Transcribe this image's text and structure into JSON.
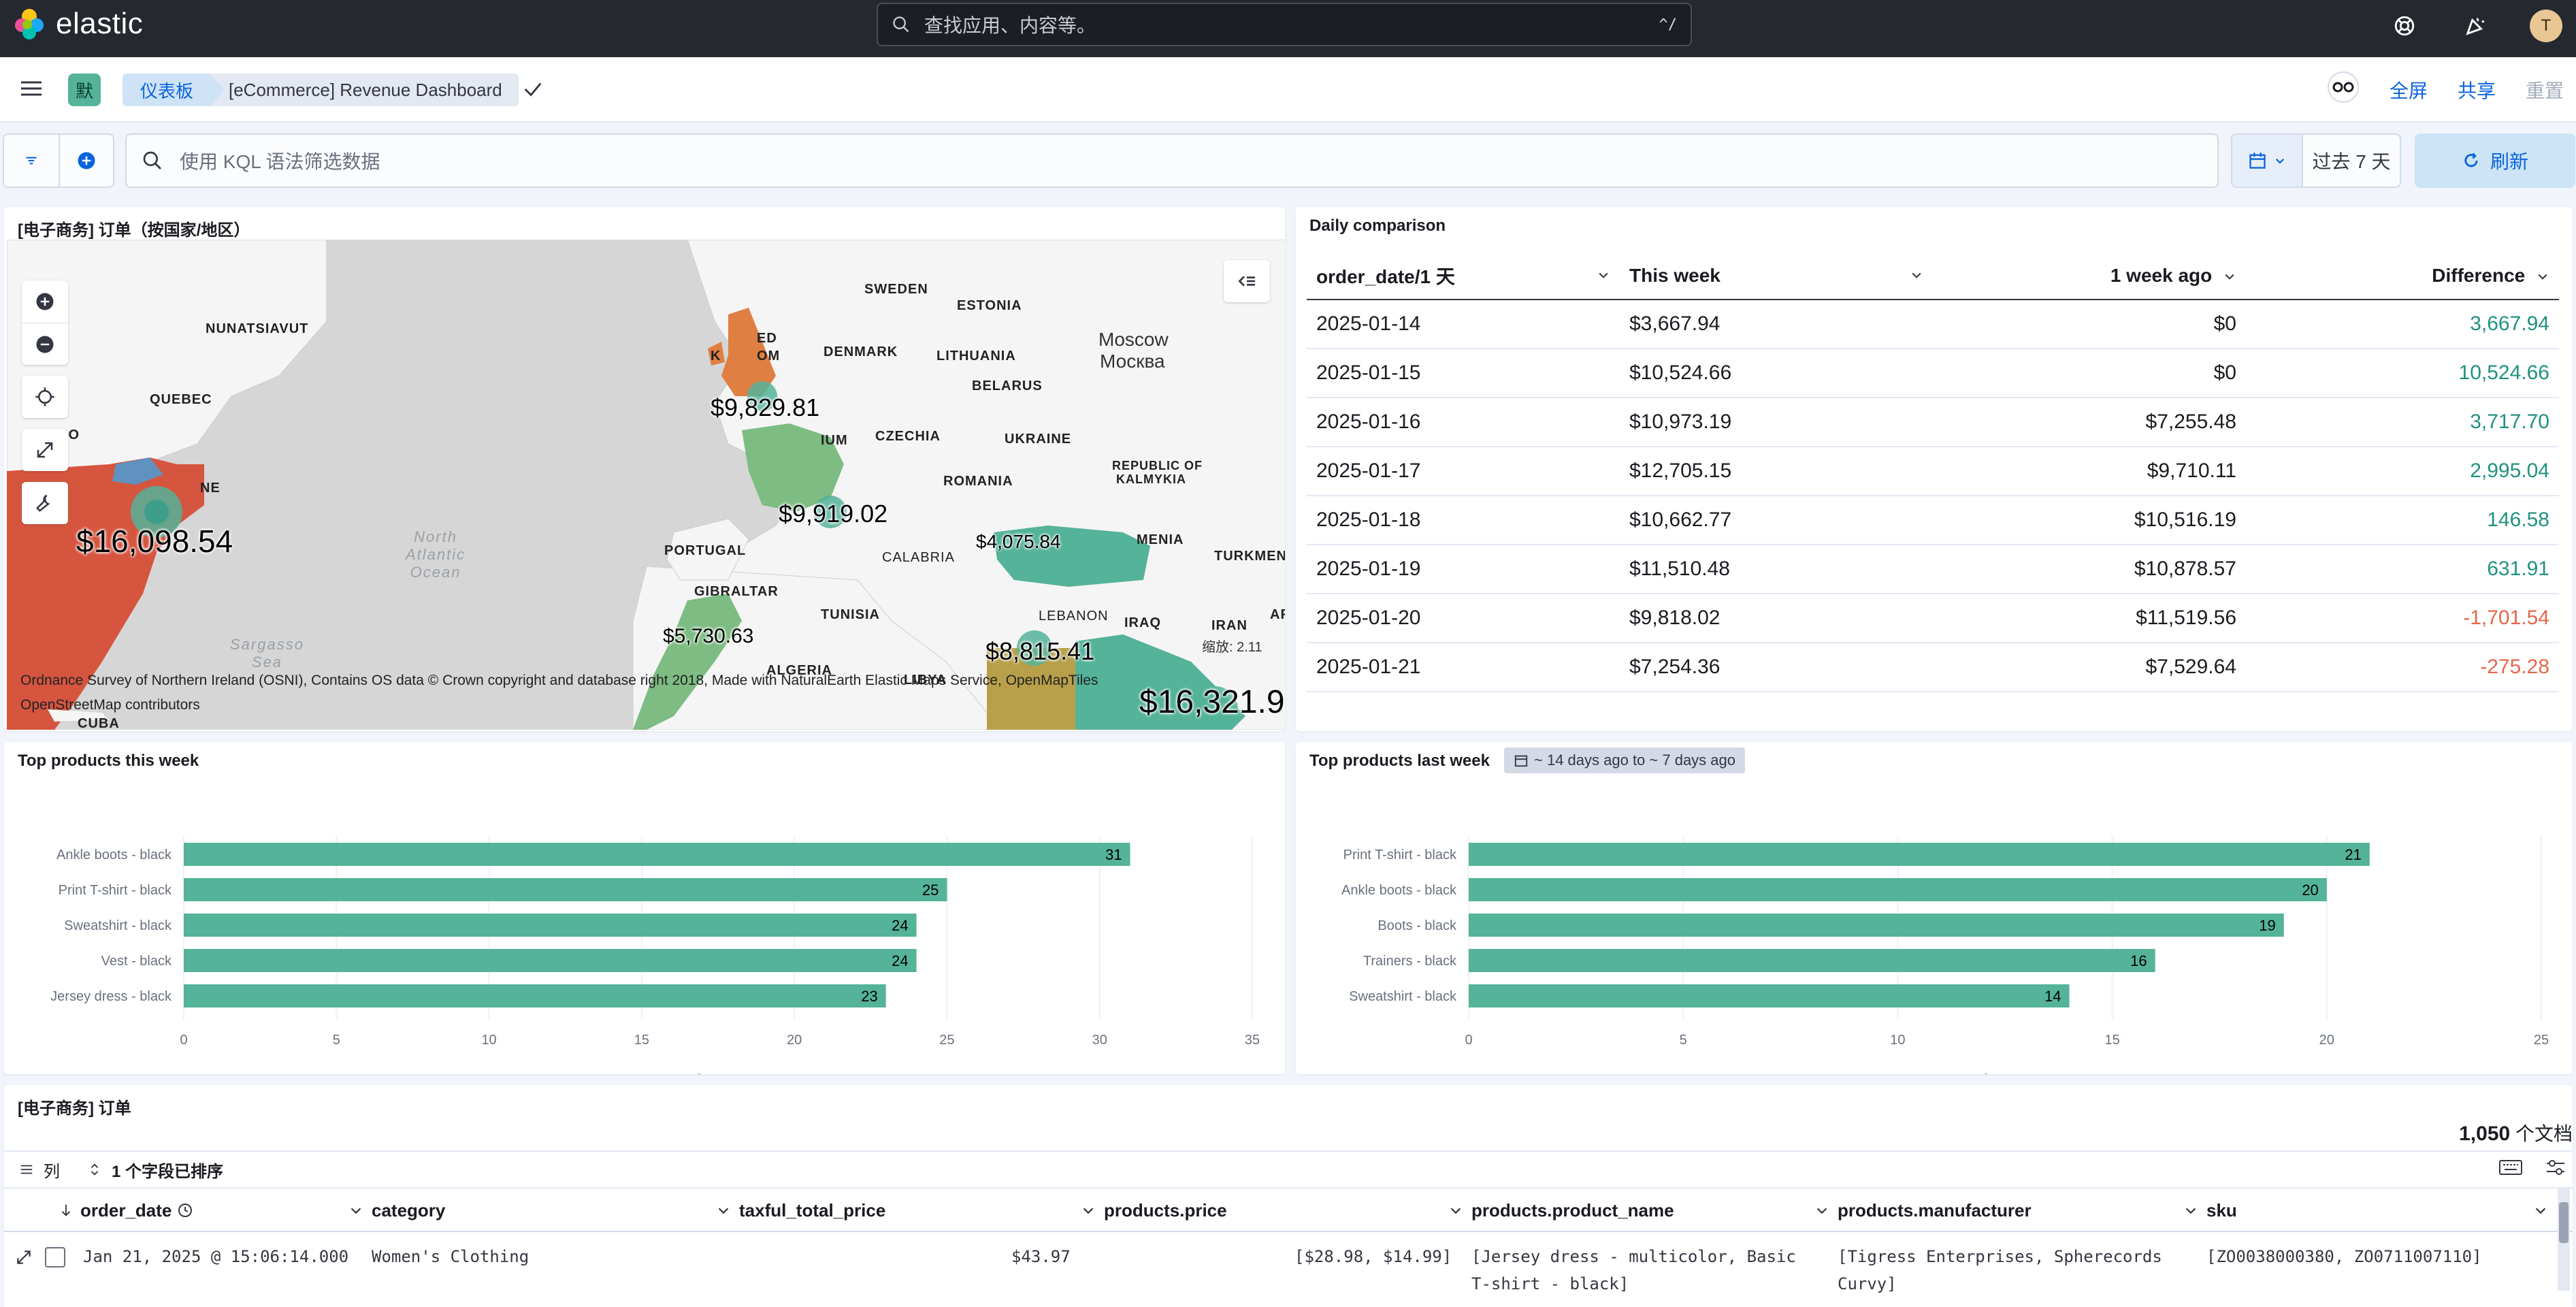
{
  "header": {
    "brand": "elastic",
    "search_placeholder": "查找应用、内容等。",
    "search_shortcut": "^/",
    "avatar_initial": "T"
  },
  "breadcrumb": {
    "space_badge": "默",
    "root": "仪表板",
    "current": "[eCommerce] Revenue Dashboard",
    "actions": {
      "fullscreen": "全屏",
      "share": "共享",
      "reset": "重置"
    }
  },
  "filter": {
    "kql_placeholder": "使用 KQL 语法筛选数据",
    "time_range": "过去 7 天",
    "refresh": "刷新"
  },
  "map_panel": {
    "title": "[电子商务] 订单（按国家/地区）",
    "labels": [
      "SWEDEN",
      "ESTONIA",
      "NUNATSIAVUT",
      "DENMARK",
      "LITHUANIA",
      "QUEBEC",
      "BELARUS",
      "CZECHIA",
      "UKRAINE",
      "ROMANIA",
      "PORTUGAL",
      "CALABRIA",
      "GIBRALTAR",
      "TUNISIA",
      "LEBANON",
      "IRAQ",
      "IRAN",
      "ALGERIA",
      "LIBYA",
      "CUBA",
      "TURKMENI",
      "MENIA",
      "REPUBLIC OF",
      "KALMYKIA",
      "AF",
      "IUM",
      "ED",
      "K",
      "OM",
      "IO",
      "NE"
    ],
    "cities": {
      "moscow_en": "Moscow",
      "moscow_ru": "Москва"
    },
    "seas": {
      "north_atlantic": "North\nAtlantic\nOcean",
      "sargasso": "Sargasso\nSea"
    },
    "values": {
      "us": "$16,098.54",
      "uk": "$9,829.81",
      "fr": "$9,919.02",
      "tr": "$4,075.84",
      "ma": "$5,730.63",
      "eg": "$8,815.41",
      "sa": "$16,321.9"
    },
    "attribution": "Ordnance Survey of Northern Ireland (OSNI), Contains OS data © Crown copyright and database right 2018, Made with NaturalEarth",
    "attr_link1": "Elastic Maps Service",
    "attr_link2": "OpenMapTiles",
    "attr_link3": "OpenStreetMap contributors",
    "zoom_label": "缩放:",
    "zoom_value": "2.11",
    "colors": {
      "red": "#d6553f",
      "orange": "#e07f42",
      "green": "#54b399",
      "green_light": "#7dbc82",
      "olive": "#b8a04a",
      "blue": "#6092c0"
    }
  },
  "daily_comparison": {
    "title": "Daily comparison",
    "columns": [
      "order_date/1 天",
      "This week",
      "1 week ago",
      "Difference"
    ],
    "rows": [
      [
        "2025-01-14",
        "$3,667.94",
        "$0",
        "3,667.94"
      ],
      [
        "2025-01-15",
        "$10,524.66",
        "$0",
        "10,524.66"
      ],
      [
        "2025-01-16",
        "$10,973.19",
        "$7,255.48",
        "3,717.70"
      ],
      [
        "2025-01-17",
        "$12,705.15",
        "$9,710.11",
        "2,995.04"
      ],
      [
        "2025-01-18",
        "$10,662.77",
        "$10,516.19",
        "146.58"
      ],
      [
        "2025-01-19",
        "$11,510.48",
        "$10,878.57",
        "631.91"
      ],
      [
        "2025-01-20",
        "$9,818.02",
        "$11,519.56",
        "-1,701.54"
      ],
      [
        "2025-01-21",
        "$7,254.36",
        "$7,529.64",
        "-275.28"
      ]
    ],
    "diff_sign": [
      "pos",
      "pos",
      "pos",
      "pos",
      "pos",
      "pos",
      "neg",
      "neg"
    ]
  },
  "chart_data": [
    {
      "type": "bar",
      "orientation": "horizontal",
      "title": "Top products this week",
      "categories": [
        "Ankle boots - black",
        "Print T-shirt - black",
        "Sweatshirt - black",
        "Vest - black",
        "Jersey dress - black"
      ],
      "values": [
        31,
        25,
        24,
        24,
        23
      ],
      "xlabel": "Items",
      "xlim": [
        0,
        35
      ],
      "ticks": [
        0,
        5,
        10,
        15,
        20,
        25,
        30,
        35
      ],
      "color": "#54b399",
      "grid": true
    },
    {
      "type": "bar",
      "orientation": "horizontal",
      "title": "Top products last week",
      "badge": "~ 14 days ago to ~ 7 days ago",
      "categories": [
        "Print T-shirt - black",
        "Ankle boots - black",
        "Boots - black",
        "Trainers - black",
        "Sweatshirt - black"
      ],
      "values": [
        21,
        20,
        19,
        16,
        14
      ],
      "xlabel": "Items",
      "xlim": [
        0,
        25
      ],
      "ticks": [
        0,
        5,
        10,
        15,
        20,
        25
      ],
      "color": "#54b399",
      "grid": true
    }
  ],
  "orders_panel": {
    "title": "[电子商务] 订单",
    "count": "1,050",
    "count_unit": "个文档",
    "columns_label": "列",
    "sorted_label": "1 个字段已排序",
    "columns": [
      "order_date",
      "category",
      "taxful_total_price",
      "products.price",
      "products.product_name",
      "products.manufacturer",
      "sku"
    ],
    "row": {
      "order_date": "Jan 21, 2025 @ 15:06:14.000",
      "category": "Women's Clothing",
      "taxful_total_price": "$43.97",
      "products_price": "[$28.98, $14.99]",
      "product_name_1": "[Jersey dress - multicolor, Basic",
      "product_name_2": "T-shirt - black]",
      "manufacturer_1": "[Tigress Enterprises, Spherecords",
      "manufacturer_2": "Curvy]",
      "sku": "[ZO0038000380, ZO0711007110]"
    }
  }
}
